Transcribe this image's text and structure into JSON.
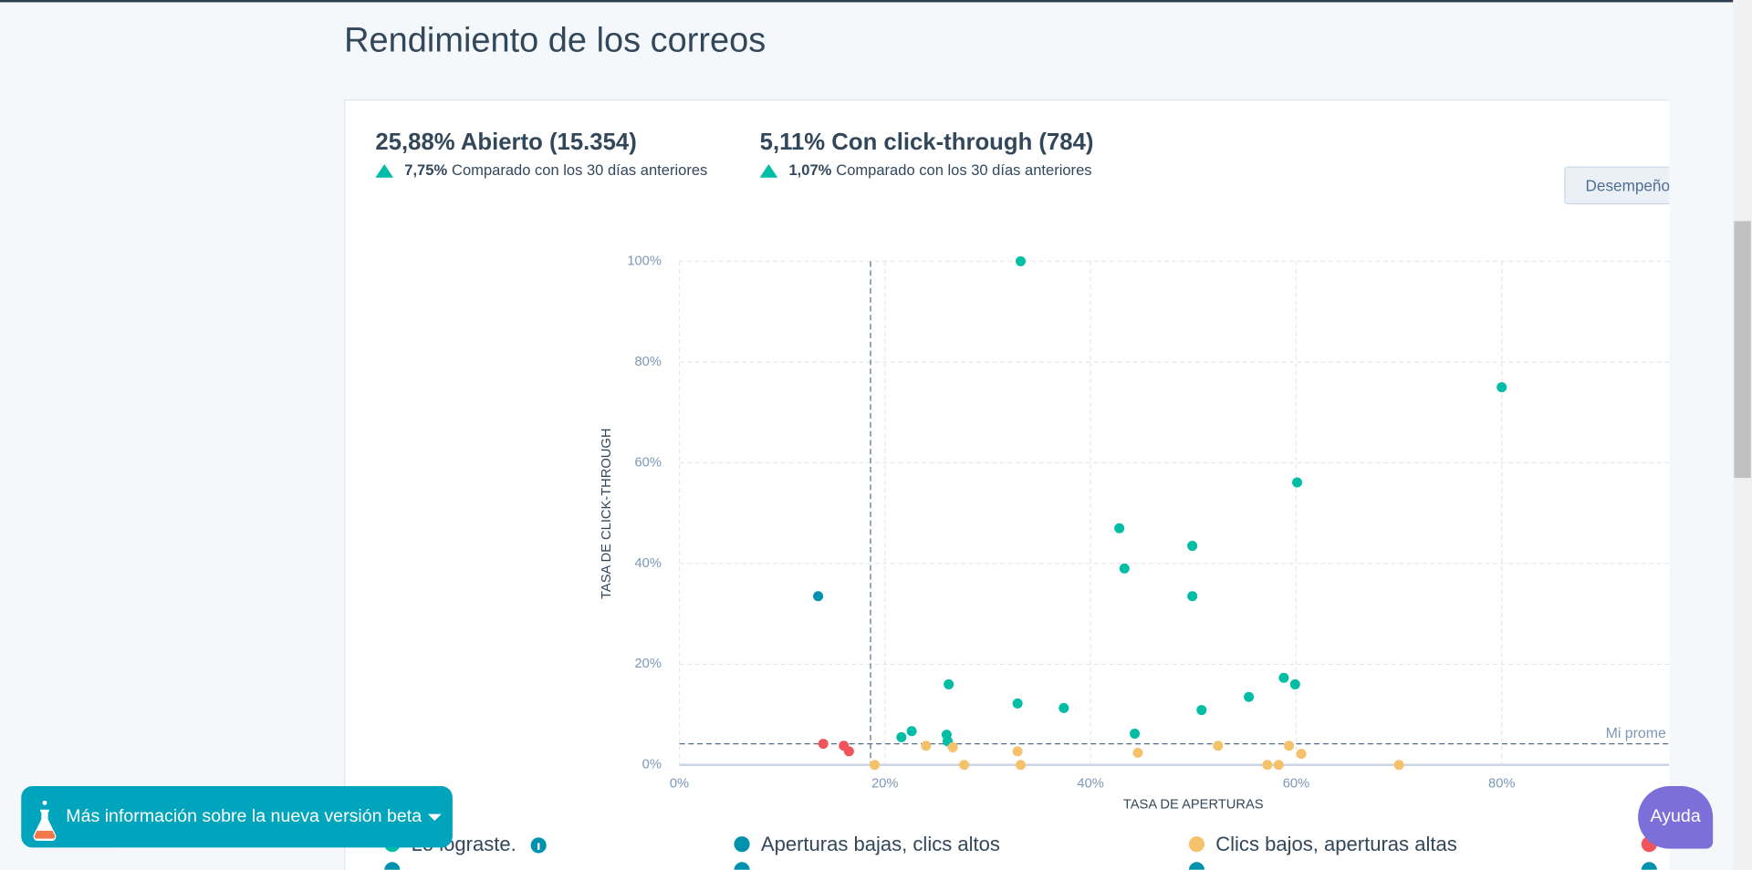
{
  "header": {
    "title": "Rendimiento de los correos"
  },
  "summary": [
    {
      "headline": "25,88% Abierto (15.354)",
      "change": "7,75%",
      "comparison": "Comparado con los 30 días anteriores"
    },
    {
      "headline": "5,11% Con click-through (784)",
      "change": "1,07%",
      "comparison": "Comparado con los 30 días anteriores"
    }
  ],
  "toolbar": {
    "button": "Desempeño"
  },
  "beta_banner": "Más información sobre la nueva versión beta",
  "help_button": "Ayuda",
  "chart_data": {
    "type": "scatter",
    "x_label": "TASA DE APERTURAS",
    "y_label": "TASA DE CLICK-THROUGH",
    "xlim": [
      0,
      96.3
    ],
    "ylim": [
      0,
      100
    ],
    "xticks": [
      {
        "value": 0,
        "label": "0%"
      },
      {
        "value": 20,
        "label": "20%"
      },
      {
        "value": 40,
        "label": "40%"
      },
      {
        "value": 60,
        "label": "60%"
      },
      {
        "value": 80,
        "label": "80%"
      }
    ],
    "yticks": [
      {
        "value": 0,
        "label": "0%"
      },
      {
        "value": 20,
        "label": "20%"
      },
      {
        "value": 40,
        "label": "40%"
      },
      {
        "value": 60,
        "label": "60%"
      },
      {
        "value": 80,
        "label": "80%"
      },
      {
        "value": 100,
        "label": "100%"
      }
    ],
    "grid": true,
    "reference_lines": {
      "x": 18.6,
      "y": 4.2,
      "label": "Mi prome"
    },
    "series": [
      {
        "name": "Lo lograste.",
        "color": "#00bda5",
        "x": [
          33.2,
          80,
          60.1,
          42.8,
          49.9,
          43.3,
          49.9,
          26.2,
          58.8,
          59.9,
          32.9,
          37.4,
          55.4,
          50.8,
          21.6,
          22.6,
          26,
          26.1,
          44.3
        ],
        "values": [
          100,
          75,
          56.1,
          47,
          43.5,
          39,
          33.5,
          16,
          17.3,
          16,
          12.2,
          11.3,
          13.5,
          10.9,
          5.5,
          6.7,
          6,
          4.7,
          6.2
        ]
      },
      {
        "name": "Aperturas bajas, clics altos",
        "color": "#0091ae",
        "x": [
          13.5
        ],
        "values": [
          33.5
        ]
      },
      {
        "name": "Clics bajos, aperturas altas",
        "color": "#f5c26b",
        "x": [
          24,
          26.6,
          19,
          27.7,
          32.9,
          33.2,
          44.6,
          52.4,
          57.2,
          58.3,
          59.3,
          60.5,
          70
        ],
        "values": [
          3.8,
          3.5,
          0,
          0,
          2.7,
          0,
          2.4,
          3.8,
          0,
          0,
          3.8,
          2.2,
          0
        ]
      },
      {
        "color": "#f2545b",
        "x": [
          14,
          16,
          16.5
        ],
        "values": [
          4.2,
          3.8,
          2.7
        ]
      }
    ]
  }
}
